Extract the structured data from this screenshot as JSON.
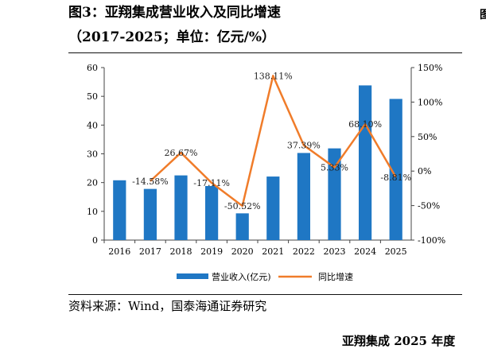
{
  "header": {
    "title": "图3：亚翔集成营业收入及同比增速",
    "subtitle": "（2017-2025；单位：亿元/%）"
  },
  "source": "资料来源：Wind，国泰海通证券研究",
  "footer_fragment": "亚翔集成 2025 年度",
  "chart_data": {
    "type": "bar",
    "categories": [
      "2016",
      "2017",
      "2018",
      "2019",
      "2020",
      "2021",
      "2022",
      "2023",
      "2024",
      "2025"
    ],
    "series": [
      {
        "name": "营业收入(亿元)",
        "type": "bar",
        "axis": "left",
        "color": "#1f77c4",
        "values": [
          20.8,
          17.8,
          22.5,
          18.8,
          9.3,
          22.1,
          30.3,
          31.9,
          53.8,
          49.1
        ]
      },
      {
        "name": "同比增速",
        "type": "line",
        "axis": "right",
        "color": "#f07c2a",
        "values": [
          null,
          -14.58,
          26.67,
          -17.11,
          -50.52,
          138.11,
          37.39,
          5.33,
          68.1,
          -8.81
        ],
        "labels": [
          "",
          "-14.58%",
          "26.67%",
          "-17.11%",
          "-50.52%",
          "138.11%",
          "37.39%",
          "5.33%",
          "68.10%",
          "-8.81%"
        ]
      }
    ],
    "y_left": {
      "min": 0,
      "max": 60,
      "ticks": [
        "0",
        "10",
        "20",
        "30",
        "40",
        "50",
        "60"
      ]
    },
    "y_right": {
      "min": -100,
      "max": 150,
      "ticks": [
        "-100%",
        "-50%",
        "0%",
        "50%",
        "100%",
        "150%"
      ]
    },
    "grid": false,
    "legend_position": "bottom"
  }
}
